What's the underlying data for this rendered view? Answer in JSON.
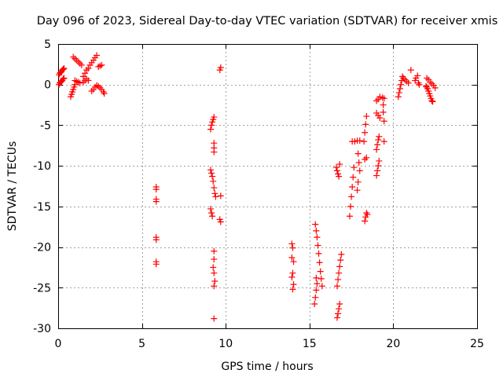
{
  "chart_data": {
    "type": "scatter",
    "title": "Day 096 of 2023, Sidereal Day-to-day VTEC variation (SDTVAR) for receiver xmis",
    "xlabel": "GPS time / hours",
    "ylabel": "SDTVAR / TECUs",
    "xlim": [
      0,
      25
    ],
    "ylim": [
      -30,
      5
    ],
    "xticks": [
      0,
      5,
      10,
      15,
      20,
      25
    ],
    "yticks": [
      5,
      0,
      -5,
      -10,
      -15,
      -20,
      -25,
      -30
    ],
    "grid": true,
    "marker": "+",
    "color": "#ff0000",
    "series": [
      {
        "name": "SDTVAR",
        "points": [
          [
            0.05,
            1.2
          ],
          [
            0.1,
            1.4
          ],
          [
            0.15,
            1.5
          ],
          [
            0.2,
            1.6
          ],
          [
            0.25,
            1.8
          ],
          [
            0.3,
            1.9
          ],
          [
            0.35,
            2.0
          ],
          [
            0.05,
            0.0
          ],
          [
            0.1,
            0.2
          ],
          [
            0.15,
            0.3
          ],
          [
            0.2,
            0.4
          ],
          [
            0.25,
            0.5
          ],
          [
            0.3,
            0.7
          ],
          [
            0.35,
            0.8
          ],
          [
            0.75,
            -1.5
          ],
          [
            0.8,
            -1.2
          ],
          [
            0.85,
            -0.9
          ],
          [
            0.9,
            -0.6
          ],
          [
            0.95,
            -0.3
          ],
          [
            1.0,
            0.0
          ],
          [
            0.9,
            3.4
          ],
          [
            1.0,
            3.2
          ],
          [
            1.1,
            3.0
          ],
          [
            1.2,
            2.8
          ],
          [
            1.3,
            2.6
          ],
          [
            1.4,
            2.4
          ],
          [
            1.0,
            0.5
          ],
          [
            1.1,
            0.4
          ],
          [
            1.2,
            0.3
          ],
          [
            1.3,
            0.2
          ],
          [
            1.5,
            1.0
          ],
          [
            1.6,
            1.4
          ],
          [
            1.7,
            1.8
          ],
          [
            1.5,
            0.3
          ],
          [
            1.6,
            0.5
          ],
          [
            1.7,
            0.7
          ],
          [
            1.8,
            0.5
          ],
          [
            1.8,
            2.0
          ],
          [
            1.9,
            2.4
          ],
          [
            2.0,
            2.7
          ],
          [
            2.1,
            3.0
          ],
          [
            2.2,
            3.3
          ],
          [
            2.3,
            3.6
          ],
          [
            2.0,
            -0.8
          ],
          [
            2.1,
            -0.6
          ],
          [
            2.2,
            -0.3
          ],
          [
            2.3,
            -0.1
          ],
          [
            2.4,
            2.2
          ],
          [
            2.5,
            2.3
          ],
          [
            2.6,
            2.4
          ],
          [
            2.4,
            -0.2
          ],
          [
            2.5,
            -0.4
          ],
          [
            2.6,
            -0.6
          ],
          [
            2.7,
            -0.9
          ],
          [
            2.75,
            -1.1
          ],
          [
            5.85,
            -12.6
          ],
          [
            5.85,
            -12.9
          ],
          [
            5.85,
            -14.1
          ],
          [
            5.85,
            -14.4
          ],
          [
            5.85,
            -18.8
          ],
          [
            5.85,
            -19.1
          ],
          [
            5.85,
            -21.8
          ],
          [
            5.85,
            -22.1
          ],
          [
            9.1,
            -5.5
          ],
          [
            9.15,
            -5.0
          ],
          [
            9.2,
            -4.6
          ],
          [
            9.25,
            -4.3
          ],
          [
            9.3,
            -4.0
          ],
          [
            9.3,
            -7.2
          ],
          [
            9.3,
            -7.8
          ],
          [
            9.3,
            -8.3
          ],
          [
            9.1,
            -10.5
          ],
          [
            9.15,
            -10.9
          ],
          [
            9.2,
            -11.3
          ],
          [
            9.25,
            -11.9
          ],
          [
            9.3,
            -12.7
          ],
          [
            9.35,
            -13.4
          ],
          [
            9.4,
            -13.8
          ],
          [
            9.1,
            -15.3
          ],
          [
            9.15,
            -15.8
          ],
          [
            9.2,
            -16.2
          ],
          [
            9.3,
            -20.5
          ],
          [
            9.3,
            -21.5
          ],
          [
            9.25,
            -22.5
          ],
          [
            9.3,
            -23.2
          ],
          [
            9.35,
            -24.2
          ],
          [
            9.3,
            -24.8
          ],
          [
            9.3,
            -28.8
          ],
          [
            9.7,
            -13.7
          ],
          [
            9.65,
            -16.6
          ],
          [
            9.7,
            -16.9
          ],
          [
            9.65,
            1.8
          ],
          [
            9.7,
            2.1
          ],
          [
            13.95,
            -19.6
          ],
          [
            14.0,
            -20.1
          ],
          [
            13.95,
            -21.3
          ],
          [
            14.05,
            -21.8
          ],
          [
            14.0,
            -23.2
          ],
          [
            13.95,
            -23.7
          ],
          [
            14.05,
            -24.6
          ],
          [
            14.0,
            -25.2
          ],
          [
            15.35,
            -17.2
          ],
          [
            15.4,
            -18.0
          ],
          [
            15.45,
            -18.8
          ],
          [
            15.5,
            -19.8
          ],
          [
            15.55,
            -20.8
          ],
          [
            15.6,
            -21.9
          ],
          [
            15.65,
            -23.0
          ],
          [
            15.7,
            -23.9
          ],
          [
            15.75,
            -24.8
          ],
          [
            15.4,
            -23.8
          ],
          [
            15.45,
            -24.5
          ],
          [
            15.4,
            -25.3
          ],
          [
            15.35,
            -26.2
          ],
          [
            15.3,
            -27.0
          ],
          [
            16.65,
            -28.7
          ],
          [
            16.7,
            -28.2
          ],
          [
            16.75,
            -27.6
          ],
          [
            16.8,
            -27.0
          ],
          [
            16.65,
            -24.8
          ],
          [
            16.7,
            -24.0
          ],
          [
            16.75,
            -23.2
          ],
          [
            16.8,
            -22.4
          ],
          [
            16.85,
            -21.6
          ],
          [
            16.9,
            -20.9
          ],
          [
            16.6,
            -10.2
          ],
          [
            16.65,
            -10.6
          ],
          [
            16.7,
            -11.0
          ],
          [
            16.75,
            -11.3
          ],
          [
            16.8,
            -9.8
          ],
          [
            17.4,
            -16.2
          ],
          [
            17.45,
            -15.0
          ],
          [
            17.5,
            -13.8
          ],
          [
            17.55,
            -12.6
          ],
          [
            17.6,
            -11.4
          ],
          [
            17.65,
            -10.2
          ],
          [
            17.55,
            -7.0
          ],
          [
            17.7,
            -7.0
          ],
          [
            17.85,
            -6.9
          ],
          [
            18.0,
            -6.9
          ],
          [
            17.9,
            -8.5
          ],
          [
            17.95,
            -9.6
          ],
          [
            18.0,
            -10.6
          ],
          [
            17.9,
            -12.0
          ],
          [
            17.85,
            -13.0
          ],
          [
            18.3,
            -16.8
          ],
          [
            18.35,
            -16.3
          ],
          [
            18.4,
            -15.8
          ],
          [
            18.45,
            -16.0
          ],
          [
            18.3,
            -9.2
          ],
          [
            18.4,
            -9.0
          ],
          [
            18.25,
            -7.0
          ],
          [
            18.3,
            -5.9
          ],
          [
            18.35,
            -4.9
          ],
          [
            18.4,
            -3.9
          ],
          [
            19.0,
            -11.2
          ],
          [
            19.05,
            -10.6
          ],
          [
            19.1,
            -10.0
          ],
          [
            19.15,
            -9.4
          ],
          [
            19.0,
            -8.0
          ],
          [
            19.05,
            -7.4
          ],
          [
            19.1,
            -6.8
          ],
          [
            19.15,
            -6.4
          ],
          [
            19.0,
            -3.5
          ],
          [
            19.1,
            -3.8
          ],
          [
            19.2,
            -4.1
          ],
          [
            19.0,
            -2.0
          ],
          [
            19.1,
            -1.8
          ],
          [
            19.2,
            -1.5
          ],
          [
            19.35,
            -1.6
          ],
          [
            19.45,
            -1.7
          ],
          [
            19.45,
            -4.5
          ],
          [
            19.45,
            -7.0
          ],
          [
            19.4,
            -2.5
          ],
          [
            19.4,
            -3.4
          ],
          [
            20.3,
            -1.5
          ],
          [
            20.35,
            -1.0
          ],
          [
            20.4,
            -0.5
          ],
          [
            20.45,
            0.0
          ],
          [
            20.5,
            0.5
          ],
          [
            20.55,
            1.0
          ],
          [
            20.6,
            0.8
          ],
          [
            20.7,
            0.6
          ],
          [
            20.8,
            0.4
          ],
          [
            20.9,
            0.2
          ],
          [
            21.05,
            1.8
          ],
          [
            21.3,
            0.5
          ],
          [
            21.35,
            0.8
          ],
          [
            21.45,
            1.1
          ],
          [
            21.5,
            0.2
          ],
          [
            21.55,
            0.0
          ],
          [
            21.95,
            -0.2
          ],
          [
            22.0,
            -0.3
          ],
          [
            22.05,
            -0.5
          ],
          [
            22.1,
            -0.8
          ],
          [
            22.15,
            -1.1
          ],
          [
            22.2,
            -1.4
          ],
          [
            22.25,
            -1.7
          ],
          [
            22.3,
            -2.0
          ],
          [
            22.35,
            -2.1
          ],
          [
            22.0,
            0.8
          ],
          [
            22.1,
            0.6
          ],
          [
            22.2,
            0.3
          ],
          [
            22.3,
            0.1
          ],
          [
            22.4,
            -0.1
          ],
          [
            22.5,
            -0.4
          ]
        ]
      }
    ]
  }
}
